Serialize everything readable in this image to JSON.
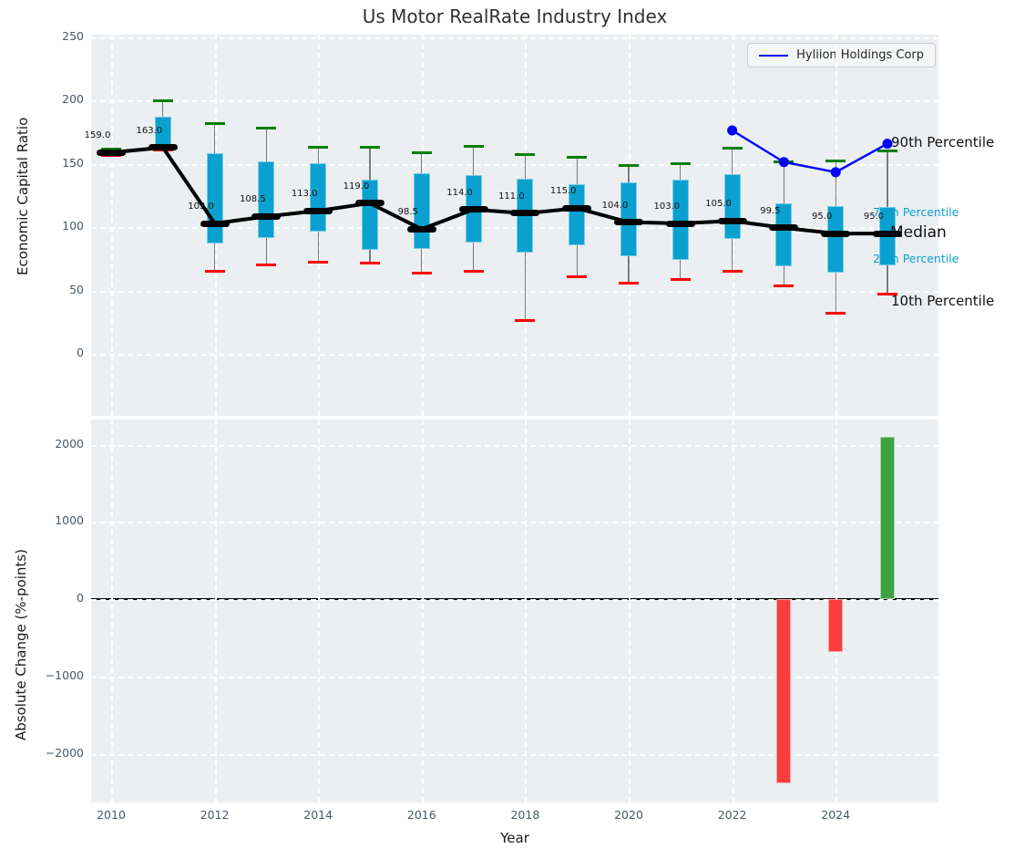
{
  "title": "Us Motor RealRate Industry Index",
  "legend": {
    "label": "Hyliion Holdings Corp"
  },
  "colors": {
    "box_fill": "#0aa1d1",
    "whisker": "#7a7a7a",
    "cap_high": "#007f00",
    "cap_low": "#ff0000",
    "median_line": "#000000",
    "hyliion_line": "#0000ff",
    "bar_negative": "#fa3d3f",
    "bar_positive": "#3fa044",
    "plot_bg": "#eceff1",
    "grid": "#ffffff",
    "tick_text": "#46586c",
    "annotation_cyan": "#0aa1d1"
  },
  "top_chart": {
    "ylabel": "Economic Capital Ratio",
    "ytick_labels": [
      "250",
      "200",
      "150",
      "100",
      "50",
      "0"
    ],
    "annotations": {
      "p90": "90th Percentile",
      "p75": "75th Percentile",
      "median": "Median",
      "p25": "25th Percentile",
      "p10": "10th Percentile"
    }
  },
  "bottom_chart": {
    "ylabel": "Absolute Change (%-points)",
    "xlabel": "Year",
    "ytick_labels": [
      "2000",
      "1000",
      "0",
      "−1000",
      "−2000"
    ],
    "xtick_labels": [
      "2010",
      "2012",
      "2014",
      "2016",
      "2018",
      "2020",
      "2022",
      "2024"
    ]
  },
  "chart_data": [
    {
      "type": "boxplot",
      "title": "Us Motor RealRate Industry Index",
      "ylabel": "Economic Capital Ratio",
      "ylim": [
        -48,
        252
      ],
      "yticks": [
        250,
        200,
        150,
        100,
        50,
        0
      ],
      "grid": "white-dashed",
      "legend_position": "upper right",
      "categories": [
        2010,
        2011,
        2012,
        2013,
        2014,
        2015,
        2016,
        2017,
        2018,
        2019,
        2020,
        2021,
        2022,
        2023,
        2024,
        2025
      ],
      "percentiles": {
        "p90": [
          162,
          200,
          182,
          178,
          163.5,
          163.5,
          159,
          164,
          157.5,
          155.5,
          149,
          150.5,
          162.5,
          151.5,
          152.5,
          160
        ],
        "p75": [
          160.5,
          187.5,
          158.5,
          152,
          150.5,
          137.5,
          143,
          141,
          138,
          134,
          135.5,
          137.5,
          142,
          119,
          117,
          116
        ],
        "median": [
          159,
          163,
          103,
          108.5,
          113,
          119,
          98.5,
          114,
          111,
          115,
          104,
          103,
          105,
          99.5,
          95,
          95
        ],
        "p25": [
          157.5,
          163,
          87,
          91.5,
          96.5,
          82,
          83,
          88,
          80,
          85.5,
          77,
          74,
          91,
          69,
          64,
          70
        ],
        "p10": [
          156.5,
          161,
          65,
          70.5,
          72.5,
          72,
          63.5,
          65,
          26,
          61,
          56,
          58.5,
          65,
          54,
          32,
          47.5
        ]
      },
      "median_labels": [
        "159.0",
        "163.0",
        "103.0",
        "108.5",
        "113.0",
        "119.0",
        "98.5",
        "114.0",
        "111.0",
        "115.0",
        "104.0",
        "103.0",
        "105.0",
        "99.5",
        "95.0",
        "95.0"
      ],
      "series": [
        {
          "name": "Hyliion Holdings Corp",
          "x": [
            2022,
            2023,
            2024,
            2025
          ],
          "values": [
            176.5,
            151.5,
            143.5,
            166
          ],
          "color": "#0000ff"
        }
      ]
    },
    {
      "type": "bar",
      "ylabel": "Absolute Change (%-points)",
      "xlabel": "Year",
      "ylim": [
        -2630,
        2320
      ],
      "yticks": [
        2000,
        1000,
        0,
        -1000,
        -2000
      ],
      "xticks": [
        2010,
        2012,
        2014,
        2016,
        2018,
        2020,
        2022,
        2024
      ],
      "categories": [
        2023,
        2024,
        2025
      ],
      "values": [
        -2380,
        -690,
        2100
      ],
      "bar_colors": [
        "#fa3d3f",
        "#fa3d3f",
        "#3fa044"
      ]
    }
  ]
}
